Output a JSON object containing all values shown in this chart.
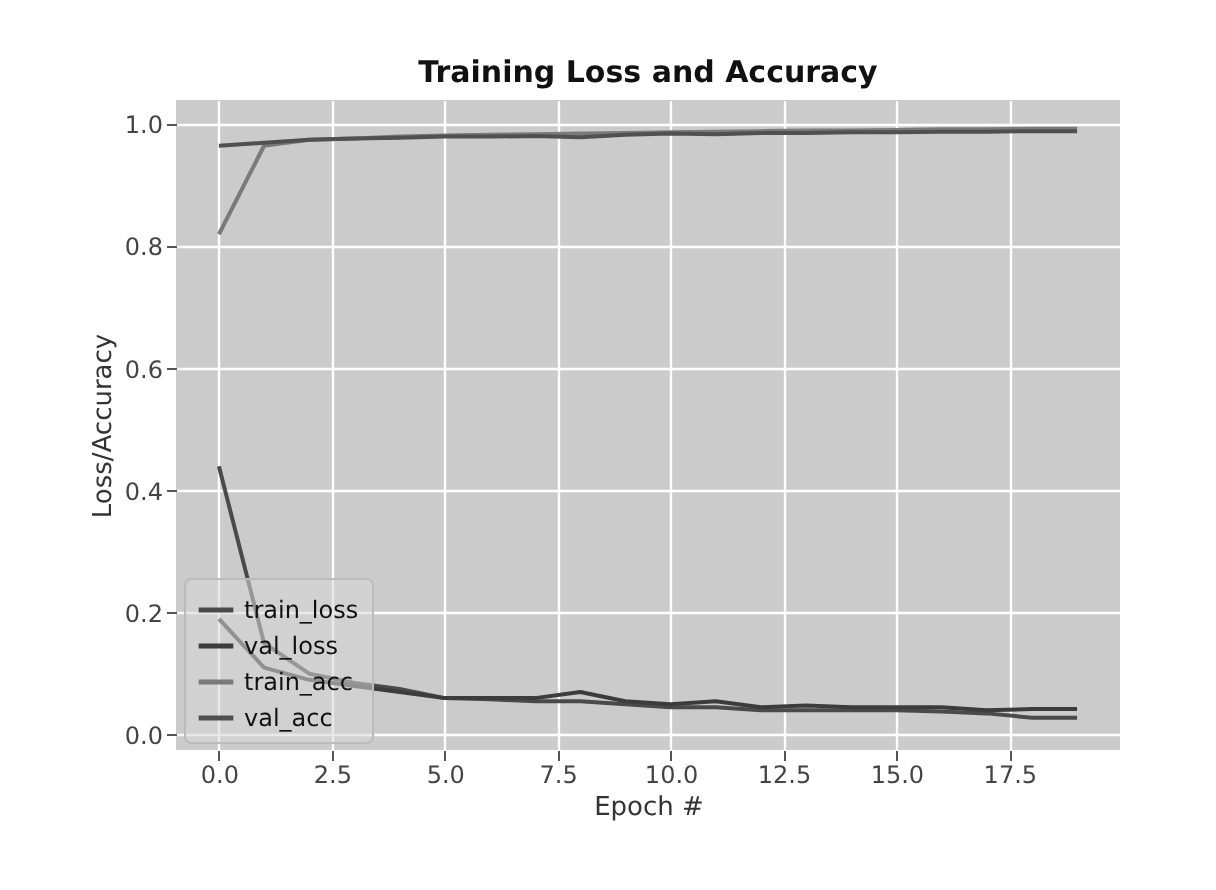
{
  "chart_data": {
    "type": "line",
    "title": "Training Loss and Accuracy",
    "xlabel": "Epoch #",
    "ylabel": "Loss/Accuracy",
    "x": [
      0,
      1,
      2,
      3,
      4,
      5,
      6,
      7,
      8,
      9,
      10,
      11,
      12,
      13,
      14,
      15,
      16,
      17,
      18,
      19
    ],
    "series": [
      {
        "name": "train_loss",
        "color": "#4a4a4a",
        "values": [
          0.44,
          0.15,
          0.1,
          0.085,
          0.075,
          0.06,
          0.058,
          0.055,
          0.055,
          0.05,
          0.045,
          0.045,
          0.04,
          0.04,
          0.04,
          0.04,
          0.038,
          0.035,
          0.028,
          0.028
        ]
      },
      {
        "name": "val_loss",
        "color": "#3c3c3c",
        "values": [
          0.19,
          0.11,
          0.09,
          0.08,
          0.07,
          0.06,
          0.06,
          0.06,
          0.07,
          0.055,
          0.05,
          0.055,
          0.045,
          0.048,
          0.045,
          0.045,
          0.045,
          0.04,
          0.042,
          0.042
        ]
      },
      {
        "name": "train_acc",
        "color": "#7a7a7a",
        "values": [
          0.82,
          0.965,
          0.975,
          0.977,
          0.98,
          0.982,
          0.983,
          0.984,
          0.985,
          0.986,
          0.987,
          0.988,
          0.989,
          0.99,
          0.99,
          0.991,
          0.992,
          0.992,
          0.993,
          0.993
        ]
      },
      {
        "name": "val_acc",
        "color": "#505050",
        "values": [
          0.965,
          0.97,
          0.975,
          0.977,
          0.978,
          0.98,
          0.98,
          0.981,
          0.979,
          0.983,
          0.985,
          0.984,
          0.986,
          0.986,
          0.987,
          0.987,
          0.988,
          0.988,
          0.989,
          0.989
        ]
      }
    ],
    "xlim": [
      -0.95,
      19.95
    ],
    "ylim": [
      -0.025,
      1.04
    ],
    "xticks": [
      {
        "value": 0,
        "label": "0.0"
      },
      {
        "value": 2.5,
        "label": "2.5"
      },
      {
        "value": 5,
        "label": "5.0"
      },
      {
        "value": 7.5,
        "label": "7.5"
      },
      {
        "value": 10,
        "label": "10.0"
      },
      {
        "value": 12.5,
        "label": "12.5"
      },
      {
        "value": 15,
        "label": "15.0"
      },
      {
        "value": 17.5,
        "label": "17.5"
      }
    ],
    "yticks": [
      {
        "value": 0,
        "label": "0.0"
      },
      {
        "value": 0.2,
        "label": "0.2"
      },
      {
        "value": 0.4,
        "label": "0.4"
      },
      {
        "value": 0.6,
        "label": "0.6"
      },
      {
        "value": 0.8,
        "label": "0.8"
      },
      {
        "value": 1,
        "label": "1.0"
      }
    ],
    "grid": true,
    "legend": "bottom left",
    "marker": "none",
    "line_style": "solid"
  }
}
